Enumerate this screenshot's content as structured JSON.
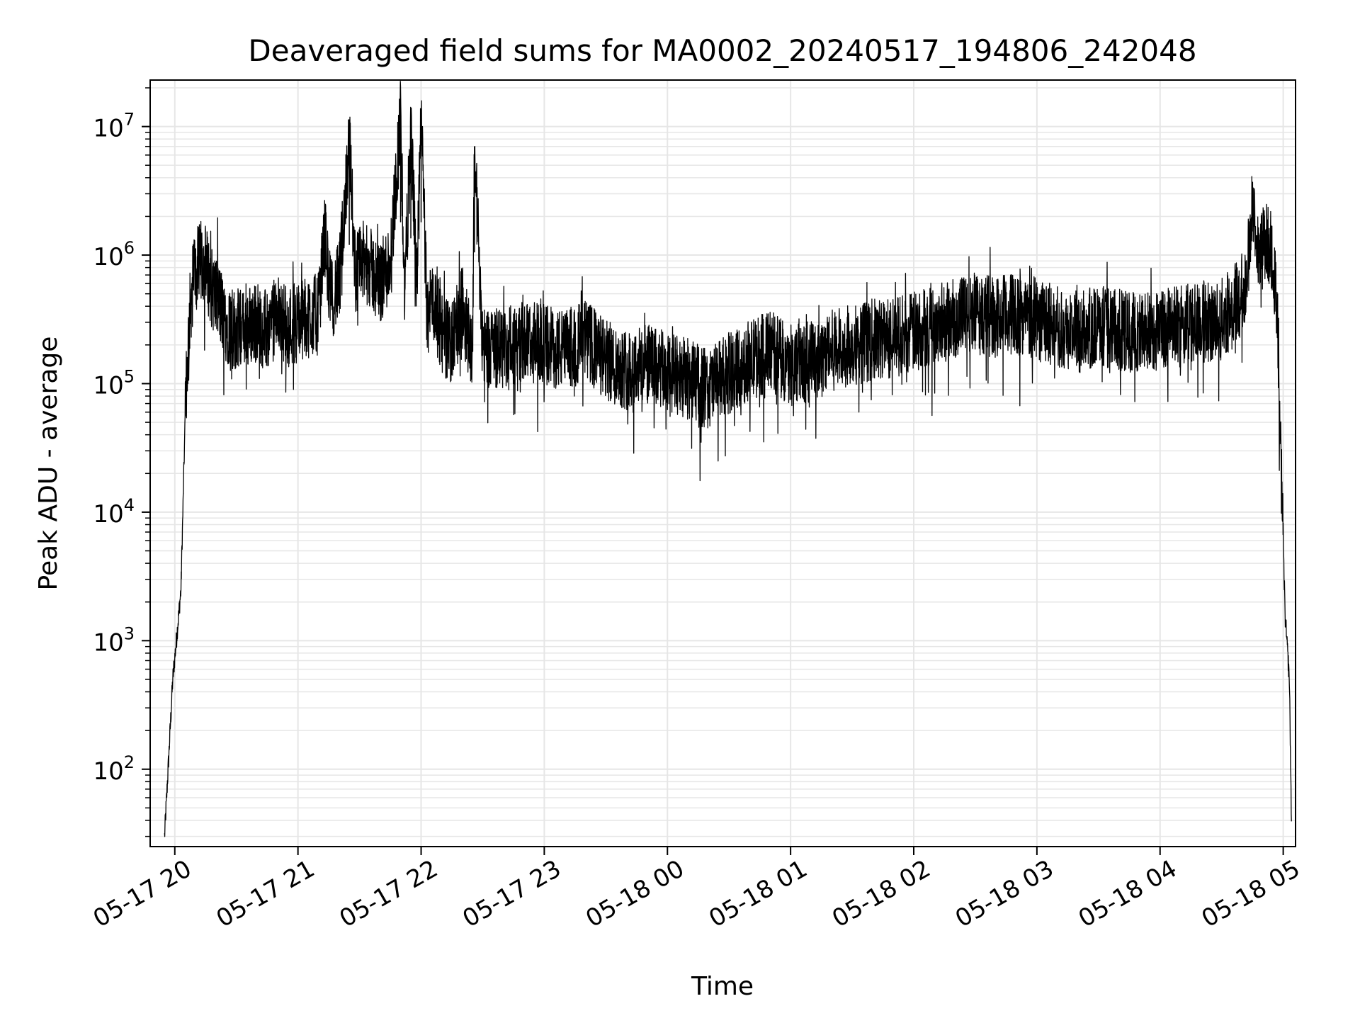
{
  "chart_data": {
    "type": "line",
    "title": "Deaveraged field sums for MA0002_20240517_194806_242048",
    "xlabel": "Time",
    "ylabel": "Peak ADU - average",
    "yscale": "log",
    "ylim": [
      25,
      23000000
    ],
    "xlim": [
      "2024-05-17 19:48",
      "2024-05-18 05:06"
    ],
    "grid": "on (major and minor, light gray)",
    "line_color": "#000000",
    "x_ticks": [
      "05-17 20",
      "05-17 21",
      "05-17 22",
      "05-17 23",
      "05-18 00",
      "05-18 01",
      "05-18 02",
      "05-18 03",
      "05-18 04",
      "05-18 05"
    ],
    "y_ticks": [
      {
        "base": "10",
        "exp": "2",
        "value": 100
      },
      {
        "base": "10",
        "exp": "3",
        "value": 1000
      },
      {
        "base": "10",
        "exp": "4",
        "value": 10000
      },
      {
        "base": "10",
        "exp": "5",
        "value": 100000
      },
      {
        "base": "10",
        "exp": "6",
        "value": 1000000
      },
      {
        "base": "10",
        "exp": "7",
        "value": 10000000
      }
    ],
    "series": [
      {
        "x": [
          "2024-05-17 19:55",
          "2024-05-17 19:57",
          "2024-05-17 19:59",
          "2024-05-17 20:01",
          "2024-05-17 20:03",
          "2024-05-17 20:05",
          "2024-05-17 20:07",
          "2024-05-17 20:09",
          "2024-05-17 20:11",
          "2024-05-17 20:13",
          "2024-05-17 20:15",
          "2024-05-17 20:18",
          "2024-05-17 20:21",
          "2024-05-17 20:25",
          "2024-05-17 20:30",
          "2024-05-17 20:35",
          "2024-05-17 20:40",
          "2024-05-17 20:45",
          "2024-05-17 20:50",
          "2024-05-17 20:55",
          "2024-05-17 21:00",
          "2024-05-17 21:05",
          "2024-05-17 21:10",
          "2024-05-17 21:13",
          "2024-05-17 21:16",
          "2024-05-17 21:20",
          "2024-05-17 21:25",
          "2024-05-17 21:28",
          "2024-05-17 21:31",
          "2024-05-17 21:35",
          "2024-05-17 21:40",
          "2024-05-17 21:45",
          "2024-05-17 21:50",
          "2024-05-17 21:52",
          "2024-05-17 21:55",
          "2024-05-17 21:58",
          "2024-05-17 22:00",
          "2024-05-17 22:03",
          "2024-05-17 22:05",
          "2024-05-17 22:10",
          "2024-05-17 22:15",
          "2024-05-17 22:20",
          "2024-05-17 22:25",
          "2024-05-17 22:26",
          "2024-05-17 22:30",
          "2024-05-17 22:40",
          "2024-05-17 22:50",
          "2024-05-17 23:00",
          "2024-05-17 23:10",
          "2024-05-17 23:20",
          "2024-05-17 23:30",
          "2024-05-17 23:40",
          "2024-05-17 23:50",
          "2024-05-18 00:00",
          "2024-05-18 00:10",
          "2024-05-18 00:20",
          "2024-05-18 00:30",
          "2024-05-18 00:40",
          "2024-05-18 00:50",
          "2024-05-18 01:00",
          "2024-05-18 01:10",
          "2024-05-18 01:20",
          "2024-05-18 01:30",
          "2024-05-18 01:40",
          "2024-05-18 01:50",
          "2024-05-18 02:00",
          "2024-05-18 02:10",
          "2024-05-18 02:20",
          "2024-05-18 02:30",
          "2024-05-18 02:40",
          "2024-05-18 02:50",
          "2024-05-18 03:00",
          "2024-05-18 03:10",
          "2024-05-18 03:20",
          "2024-05-18 03:30",
          "2024-05-18 03:40",
          "2024-05-18 03:50",
          "2024-05-18 04:00",
          "2024-05-18 04:10",
          "2024-05-18 04:20",
          "2024-05-18 04:30",
          "2024-05-18 04:35",
          "2024-05-18 04:38",
          "2024-05-18 04:42",
          "2024-05-18 04:45",
          "2024-05-18 04:48",
          "2024-05-18 04:51",
          "2024-05-18 04:53",
          "2024-05-18 04:55",
          "2024-05-18 04:57",
          "2024-05-18 04:59",
          "2024-05-18 05:01",
          "2024-05-18 05:03",
          "2024-05-18 05:04"
        ],
        "values": [
          30,
          120,
          500,
          1100,
          2500,
          50000,
          300000,
          700000,
          800000,
          900000,
          850000,
          550000,
          450000,
          300000,
          260000,
          280000,
          300000,
          250000,
          350000,
          280000,
          300000,
          330000,
          350000,
          1500000,
          450000,
          600000,
          8000000,
          700000,
          900000,
          800000,
          600000,
          900000,
          12000000,
          500000,
          9000000,
          600000,
          12000000,
          300000,
          500000,
          250000,
          200000,
          400000,
          180000,
          7000000,
          200000,
          180000,
          220000,
          200000,
          180000,
          220000,
          150000,
          130000,
          140000,
          120000,
          110000,
          90000,
          120000,
          150000,
          180000,
          140000,
          150000,
          180000,
          200000,
          220000,
          230000,
          250000,
          300000,
          320000,
          350000,
          330000,
          350000,
          320000,
          280000,
          250000,
          280000,
          260000,
          250000,
          260000,
          280000,
          300000,
          320000,
          380000,
          450000,
          600000,
          2500000,
          900000,
          1300000,
          1200000,
          1100000,
          300000,
          20000,
          1500,
          500,
          40
        ]
      }
    ]
  }
}
